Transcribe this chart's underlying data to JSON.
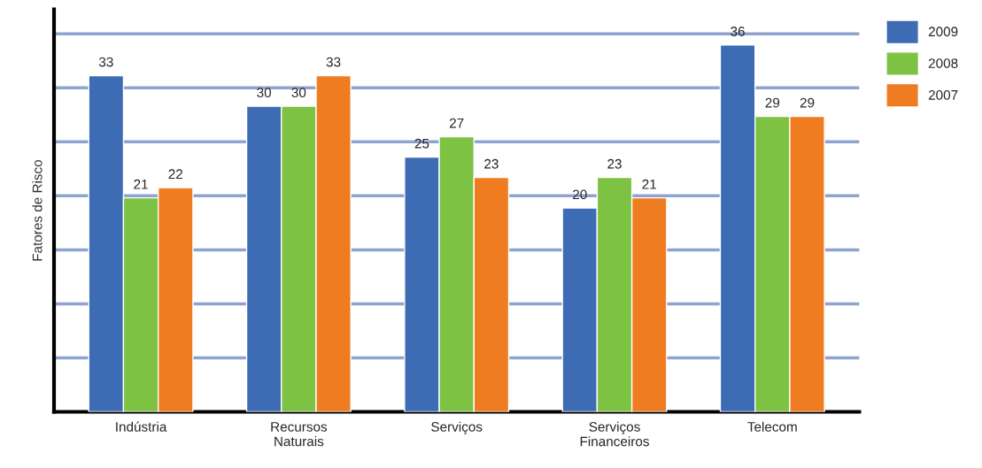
{
  "chart_data": {
    "type": "bar",
    "ylabel": "Fatores de Risco",
    "categories": [
      "Indústria",
      "Recursos\nNaturais",
      "Serviços",
      "Serviços\nFinanceiros",
      "Telecom"
    ],
    "series": [
      {
        "name": "2009",
        "color": "#3d6cb5",
        "values": [
          33,
          30,
          25,
          20,
          36
        ]
      },
      {
        "name": "2008",
        "color": "#7dc242",
        "values": [
          21,
          30,
          27,
          23,
          29
        ]
      },
      {
        "name": "2007",
        "color": "#f07c22",
        "values": [
          22,
          33,
          23,
          21,
          29
        ]
      }
    ],
    "ylim": [
      0,
      39.5
    ],
    "yticks": [
      {
        "value": 5.3,
        "label": null
      },
      {
        "value": 10.6,
        "label": null
      },
      {
        "value": 15.9,
        "label": null
      },
      {
        "value": 21.2,
        "label": null
      },
      {
        "value": 26.5,
        "label": null
      },
      {
        "value": 31.8,
        "label": null
      },
      {
        "value": 37.1,
        "label": null
      }
    ],
    "grid": "y",
    "legend": "top right",
    "data_labels": true
  }
}
